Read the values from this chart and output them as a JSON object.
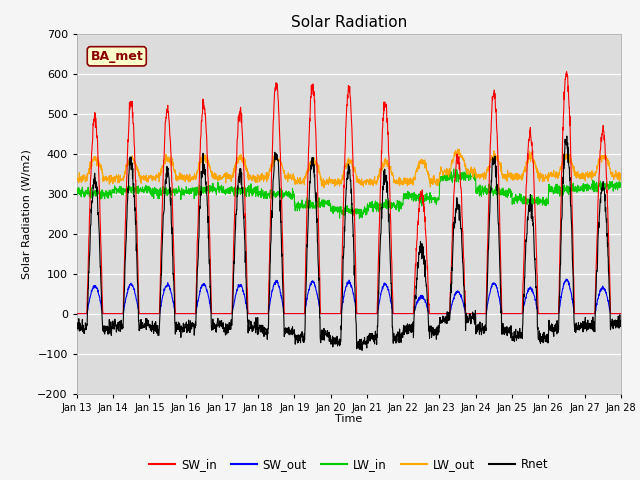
{
  "title": "Solar Radiation",
  "ylabel": "Solar Radiation (W/m2)",
  "xlabel": "Time",
  "ylim": [
    -200,
    700
  ],
  "yticks": [
    -200,
    -100,
    0,
    100,
    200,
    300,
    400,
    500,
    600,
    700
  ],
  "plot_bg_color": "#dcdcdc",
  "fig_bg_color": "#f5f5f5",
  "annotation_text": "BA_met",
  "annotation_bg": "#ffffcc",
  "annotation_edge": "#8b0000",
  "x_labels": [
    "Jan 13",
    "Jan 14",
    "Jan 15",
    "Jan 16",
    "Jan 17",
    "Jan 18",
    "Jan 19",
    "Jan 20",
    "Jan 21",
    "Jan 22",
    "Jan 23",
    "Jan 24",
    "Jan 25",
    "Jan 26",
    "Jan 27",
    "Jan 28"
  ],
  "legend_entries": [
    "SW_in",
    "SW_out",
    "LW_in",
    "LW_out",
    "Rnet"
  ],
  "legend_colors": [
    "#ff0000",
    "#0000ff",
    "#00cc00",
    "#ffa500",
    "#000000"
  ],
  "n_days": 15,
  "pts_per_day": 144,
  "SW_in_peaks": [
    490,
    525,
    510,
    525,
    505,
    575,
    570,
    560,
    525,
    300,
    390,
    550,
    450,
    600,
    460
  ],
  "LW_in_base": [
    305,
    308,
    305,
    305,
    308,
    300,
    268,
    262,
    268,
    295,
    340,
    310,
    285,
    310,
    315
  ],
  "LW_out_base": [
    338,
    338,
    340,
    340,
    340,
    340,
    330,
    330,
    330,
    330,
    355,
    345,
    340,
    345,
    345
  ]
}
